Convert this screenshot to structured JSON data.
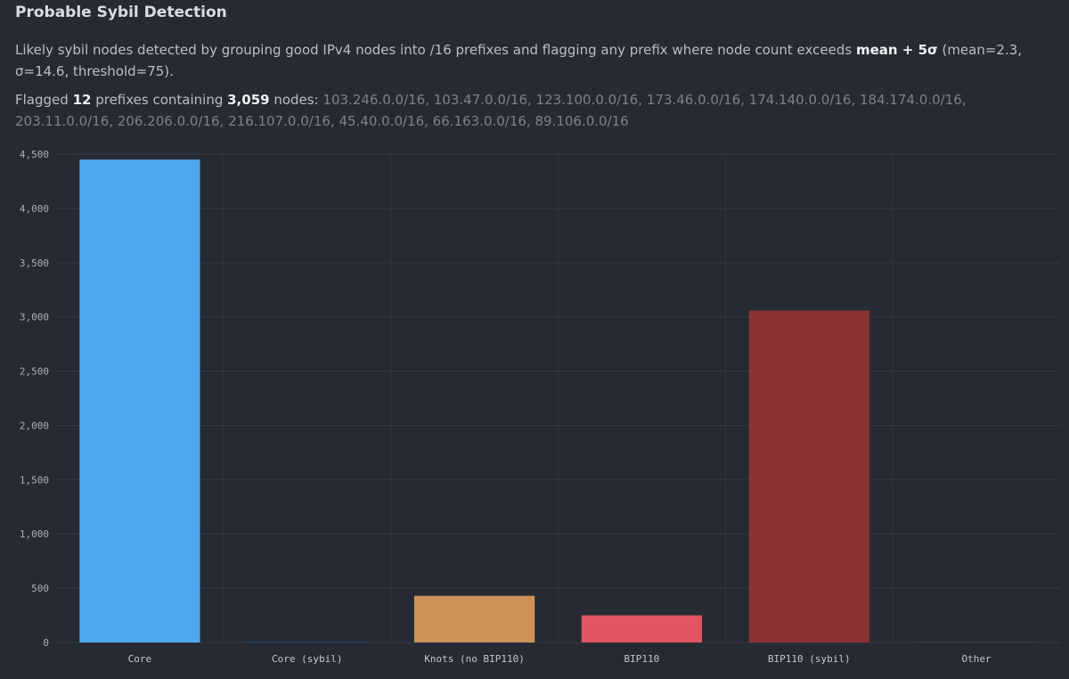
{
  "header": {
    "title": "Probable Sybil Detection",
    "desc_prefix": "Likely sybil nodes detected by grouping good IPv4 nodes into /16 prefixes and flagging any prefix where node count exceeds ",
    "desc_bold": "mean + 5σ",
    "desc_suffix": " (mean=2.3, σ=14.6, threshold=75).",
    "flagged_text1": "Flagged ",
    "flagged_count": "12",
    "flagged_text2": " prefixes containing ",
    "flagged_nodes": "3,059",
    "flagged_text3": " nodes: ",
    "prefixes": "103.246.0.0/16, 103.47.0.0/16, 123.100.0.0/16, 173.46.0.0/16, 174.140.0.0/16, 184.174.0.0/16, 203.11.0.0/16, 206.206.0.0/16, 216.107.0.0/16, 45.40.0.0/16, 66.163.0.0/16, 89.106.0.0/16"
  },
  "chart_data": {
    "type": "bar",
    "categories": [
      "Core",
      "Core (sybil)",
      "Knots (no BIP110)",
      "BIP110",
      "BIP110 (sybil)",
      "Other"
    ],
    "values": [
      4450,
      5,
      430,
      250,
      3059,
      8
    ],
    "colors": [
      "#4fa8ee",
      "#2b4a5e",
      "#cd9157",
      "#e25562",
      "#8b3232",
      "#3c414b"
    ],
    "ylim": [
      0,
      4500
    ],
    "yticks": [
      0,
      500,
      1000,
      1500,
      2000,
      2500,
      3000,
      3500,
      4000,
      4500
    ],
    "ytick_labels": [
      "0",
      "500",
      "1,000",
      "1,500",
      "2,000",
      "2,500",
      "3,000",
      "3,500",
      "4,000",
      "4,500"
    ],
    "grid": true,
    "title": "",
    "xlabel": "",
    "ylabel": ""
  }
}
